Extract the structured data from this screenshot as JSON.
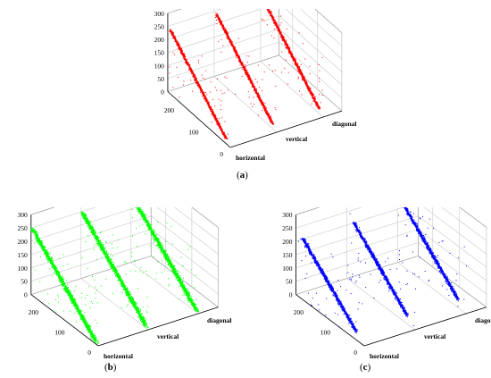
{
  "figure": {
    "panels": [
      {
        "caption_open": "(",
        "caption_letter": "a",
        "caption_close": ")"
      },
      {
        "caption_open": "(",
        "caption_letter": "b",
        "caption_close": ")"
      },
      {
        "caption_open": "(",
        "caption_letter": "c",
        "caption_close": ")"
      }
    ]
  },
  "chart_data": [
    {
      "type": "scatter",
      "panel": "a",
      "color": "#ff0000",
      "zlim": [
        0,
        300
      ],
      "z_ticks": [
        "0",
        "50",
        "100",
        "150",
        "200",
        "250",
        "300"
      ],
      "x_ticks": [
        "0",
        "100",
        "200"
      ],
      "categories": [
        "horizontal",
        "vertical",
        "diagonal"
      ],
      "grid": true,
      "series": [
        {
          "values": {
            "x": [
              0,
              255
            ],
            "z": [
              0,
              255
            ]
          }
        },
        {
          "values": {
            "x": [
              0,
              255
            ],
            "z": [
              0,
              255
            ]
          }
        },
        {
          "values": {
            "x": [
              0,
              255
            ],
            "z": [
              0,
              255
            ]
          }
        }
      ]
    },
    {
      "type": "scatter",
      "panel": "b",
      "color": "#00ff00",
      "zlim": [
        0,
        300
      ],
      "z_ticks": [
        "0",
        "50",
        "100",
        "150",
        "200",
        "250",
        "300"
      ],
      "x_ticks": [
        "0",
        "100",
        "200"
      ],
      "categories": [
        "horizontal",
        "vertical",
        "diagonal"
      ],
      "grid": true,
      "series": [
        {
          "values": {
            "x": [
              0,
              255
            ],
            "z": [
              0,
              255
            ]
          }
        },
        {
          "values": {
            "x": [
              0,
              255
            ],
            "z": [
              0,
              255
            ]
          }
        },
        {
          "values": {
            "x": [
              0,
              255
            ],
            "z": [
              0,
              255
            ]
          }
        }
      ]
    },
    {
      "type": "scatter",
      "panel": "c",
      "color": "#0000ff",
      "zlim": [
        0,
        300
      ],
      "z_ticks": [
        "0",
        "50",
        "100",
        "150",
        "200",
        "250",
        "300"
      ],
      "x_ticks": [
        "0",
        "100",
        "200"
      ],
      "categories": [
        "horizontal",
        "vertical",
        "diagonal"
      ],
      "grid": true,
      "series": [
        {
          "values": {
            "x": [
              0,
              255
            ],
            "z": [
              0,
              255
            ]
          }
        },
        {
          "values": {
            "x": [
              0,
              255
            ],
            "z": [
              0,
              255
            ]
          }
        },
        {
          "values": {
            "x": [
              0,
              255
            ],
            "z": [
              0,
              255
            ]
          }
        }
      ]
    }
  ]
}
